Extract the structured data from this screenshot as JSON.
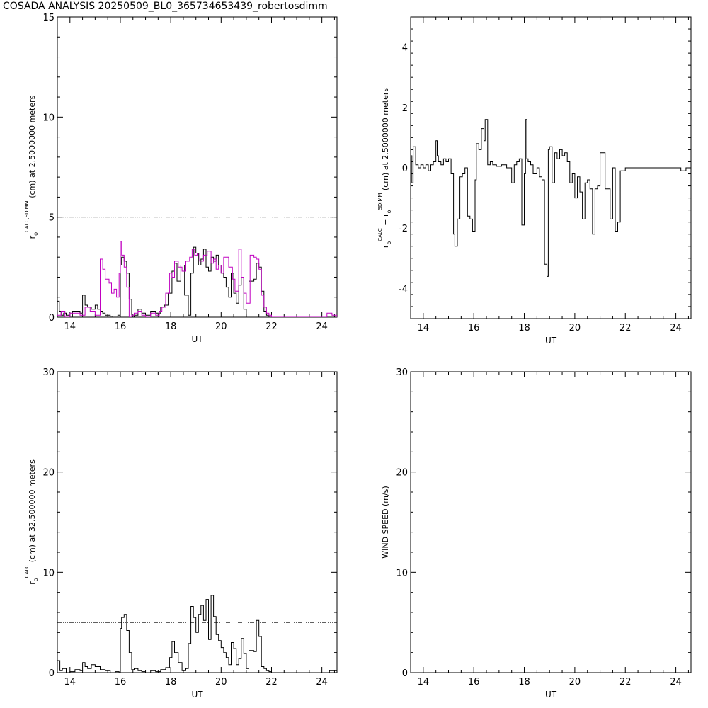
{
  "page": {
    "title": "COSADA ANALYSIS 20250509_BL0_365734653439_robertosdimm"
  },
  "colors": {
    "axes": "#000000",
    "series_calc": "#000000",
    "series_sdimm": "#c000c0"
  },
  "chart_data": [
    {
      "type": "line",
      "title": "",
      "xlabel": "UT",
      "ylabel": "r_o^CALC,SDIMM (cm) at 2.5000000 meters",
      "ylabel_parts": {
        "pre": "r",
        "sub": "o",
        "sup": "CALC,SDIMM",
        "post": " (cm)  at  2.5000000 meters"
      },
      "xlim": [
        13.5,
        24.6
      ],
      "ylim": [
        0,
        15
      ],
      "xticks": [
        14,
        16,
        18,
        20,
        22,
        24
      ],
      "yticks": [
        0,
        5,
        10,
        15
      ],
      "reference_line": {
        "y": 5
      },
      "series": [
        {
          "color": "#000000",
          "x": [
            13.5,
            13.58,
            13.65,
            13.75,
            13.85,
            14.0,
            14.1,
            14.4,
            14.5,
            14.6,
            14.7,
            14.85,
            15.0,
            15.1,
            15.2,
            15.3,
            15.4,
            15.5,
            15.6,
            15.7,
            15.8,
            15.9,
            16.0,
            16.05,
            16.15,
            16.25,
            16.35,
            16.45,
            16.55,
            16.7,
            16.85,
            17.0,
            17.2,
            17.4,
            17.6,
            17.75,
            17.9,
            18.05,
            18.15,
            18.25,
            18.4,
            18.55,
            18.7,
            18.8,
            18.9,
            19.0,
            19.1,
            19.2,
            19.3,
            19.4,
            19.5,
            19.6,
            19.7,
            19.8,
            19.9,
            20.0,
            20.1,
            20.2,
            20.3,
            20.4,
            20.5,
            20.6,
            20.7,
            20.8,
            20.9,
            21.0,
            21.1,
            21.2,
            21.3,
            21.4,
            21.5,
            21.6,
            21.7,
            21.8,
            21.9,
            22.0,
            22.5,
            23.0,
            23.5,
            24.0,
            24.3,
            24.6
          ],
          "y": [
            0.8,
            0.3,
            0.1,
            0.2,
            0.1,
            0.0,
            0.3,
            0.2,
            1.1,
            0.6,
            0.5,
            0.4,
            0.6,
            0.4,
            0.3,
            0.2,
            0.1,
            0.1,
            0.05,
            0.0,
            0.0,
            0.1,
            2.6,
            3.0,
            2.8,
            2.2,
            0.9,
            0.0,
            0.1,
            0.4,
            0.2,
            0.1,
            0.3,
            0.2,
            0.5,
            0.6,
            1.2,
            2.3,
            2.7,
            1.8,
            2.6,
            1.1,
            0.1,
            2.2,
            3.5,
            3.2,
            2.6,
            2.9,
            3.4,
            2.5,
            2.3,
            3.0,
            2.8,
            3.1,
            2.6,
            2.2,
            2.0,
            1.5,
            1.0,
            2.2,
            1.2,
            0.7,
            1.6,
            2.0,
            0.4,
            0.0,
            1.8,
            1.8,
            1.9,
            2.7,
            2.5,
            1.3,
            0.3,
            0.1,
            0.0,
            0.0,
            0.0,
            0.0,
            0.0,
            0.0,
            0.0,
            0.0
          ]
        },
        {
          "color": "#c000c0",
          "x": [
            13.5,
            13.65,
            13.8,
            14.0,
            14.4,
            14.6,
            14.8,
            15.0,
            15.2,
            15.3,
            15.4,
            15.55,
            15.65,
            15.75,
            15.85,
            15.95,
            16.0,
            16.05,
            16.15,
            16.25,
            16.35,
            16.45,
            16.55,
            16.7,
            16.85,
            17.0,
            17.2,
            17.4,
            17.55,
            17.65,
            17.8,
            17.95,
            18.05,
            18.15,
            18.3,
            18.45,
            18.6,
            18.75,
            18.85,
            18.95,
            19.05,
            19.15,
            19.3,
            19.45,
            19.6,
            19.7,
            19.8,
            19.9,
            20.0,
            20.1,
            20.3,
            20.45,
            20.55,
            20.7,
            20.8,
            20.9,
            21.0,
            21.15,
            21.3,
            21.4,
            21.5,
            21.6,
            21.7,
            21.8,
            21.9,
            22.0,
            22.5,
            23.0,
            23.5,
            24.0,
            24.2,
            24.4,
            24.6
          ],
          "y": [
            0.1,
            0.3,
            0.0,
            0.2,
            0.1,
            0.5,
            0.3,
            0.1,
            2.9,
            2.4,
            1.9,
            1.7,
            1.2,
            1.4,
            1.0,
            2.2,
            3.8,
            3.1,
            2.5,
            1.5,
            0.0,
            0.1,
            0.2,
            0.3,
            0.1,
            0.0,
            0.2,
            0.1,
            0.3,
            0.5,
            1.2,
            2.2,
            2.0,
            2.8,
            2.5,
            2.3,
            2.8,
            3.0,
            3.4,
            3.1,
            3.2,
            2.8,
            3.1,
            3.3,
            2.7,
            2.9,
            2.4,
            2.6,
            2.2,
            3.0,
            2.5,
            1.9,
            1.3,
            3.4,
            2.0,
            1.2,
            0.7,
            3.1,
            3.0,
            2.9,
            2.4,
            1.1,
            0.5,
            0.2,
            0.1,
            0.0,
            0.0,
            0.0,
            0.0,
            0.0,
            0.2,
            0.1,
            0.0
          ]
        }
      ]
    },
    {
      "type": "line",
      "title": "",
      "xlabel": "UT",
      "ylabel": "r_o^CALC − r_o^SDIMM (cm) at 2.5000000 meters",
      "ylabel_parts": {
        "pre": "r",
        "sub": "o",
        "sup": "CALC",
        "mid": "  − r",
        "sub2": "o",
        "sup2": "SDIMM",
        "post": " (cm) at 2.5000000 meters"
      },
      "xlim": [
        13.5,
        24.6
      ],
      "ylim": [
        -5,
        5
      ],
      "xticks": [
        14,
        16,
        18,
        20,
        22,
        24
      ],
      "yticks": [
        -4,
        -2,
        0,
        2,
        4
      ],
      "series": [
        {
          "color": "#000000",
          "x": [
            13.5,
            13.55,
            13.6,
            13.7,
            13.8,
            13.9,
            14.0,
            14.1,
            14.2,
            14.3,
            14.4,
            14.5,
            14.55,
            14.6,
            14.7,
            14.8,
            14.9,
            15.0,
            15.1,
            15.2,
            15.25,
            15.35,
            15.45,
            15.55,
            15.65,
            15.75,
            15.85,
            15.95,
            16.05,
            16.1,
            16.2,
            16.3,
            16.4,
            16.45,
            16.55,
            16.65,
            16.75,
            16.9,
            17.1,
            17.3,
            17.5,
            17.6,
            17.7,
            17.8,
            17.9,
            18.0,
            18.05,
            18.1,
            18.15,
            18.25,
            18.35,
            18.5,
            18.6,
            18.7,
            18.8,
            18.9,
            18.95,
            19.0,
            19.1,
            19.2,
            19.3,
            19.4,
            19.5,
            19.6,
            19.7,
            19.8,
            19.9,
            20.0,
            20.1,
            20.2,
            20.3,
            20.4,
            20.5,
            20.6,
            20.7,
            20.8,
            20.9,
            21.0,
            21.2,
            21.4,
            21.5,
            21.6,
            21.7,
            21.8,
            22.0,
            22.5,
            23.0,
            23.5,
            24.0,
            24.2,
            24.4,
            24.6
          ],
          "y": [
            0.4,
            -0.5,
            0.7,
            0.1,
            0.0,
            0.1,
            0.0,
            0.1,
            -0.1,
            0.1,
            0.2,
            0.9,
            0.4,
            0.2,
            0.1,
            0.3,
            0.2,
            0.3,
            -0.2,
            -2.2,
            -2.6,
            -1.7,
            -0.3,
            -0.2,
            0.0,
            -1.6,
            -1.7,
            -2.1,
            -0.4,
            0.8,
            0.6,
            1.3,
            0.9,
            1.6,
            0.1,
            0.2,
            0.1,
            0.05,
            0.1,
            0.0,
            -0.5,
            0.1,
            0.2,
            0.3,
            -1.9,
            -0.2,
            1.6,
            0.3,
            0.2,
            0.1,
            -0.2,
            0.0,
            -0.3,
            -0.4,
            -3.2,
            -3.6,
            0.6,
            0.7,
            -0.5,
            0.5,
            0.3,
            0.6,
            0.4,
            0.5,
            0.2,
            -0.5,
            -0.2,
            -1.0,
            -0.3,
            -0.8,
            -1.7,
            -0.5,
            -0.4,
            -0.7,
            -2.2,
            -0.7,
            -0.6,
            0.5,
            -0.7,
            -1.7,
            0.0,
            -2.1,
            -1.8,
            -0.1,
            0.0,
            0.0,
            0.0,
            0.0,
            0.0,
            -0.1,
            0.0,
            0.1
          ]
        }
      ]
    },
    {
      "type": "line",
      "title": "",
      "xlabel": "UT",
      "ylabel": "r_o^CALC (cm) at 32.500000 meters",
      "ylabel_parts": {
        "pre": "r",
        "sub": "o",
        "sup": "CALC",
        "post": " (cm)  at  32.500000 meters"
      },
      "xlim": [
        13.5,
        24.6
      ],
      "ylim": [
        0,
        30
      ],
      "xticks": [
        14,
        16,
        18,
        20,
        22,
        24
      ],
      "yticks": [
        0,
        10,
        20,
        30
      ],
      "reference_line": {
        "y": 5
      },
      "series": [
        {
          "color": "#000000",
          "x": [
            13.5,
            13.6,
            13.7,
            13.85,
            14.0,
            14.2,
            14.4,
            14.5,
            14.6,
            14.7,
            14.85,
            15.0,
            15.2,
            15.4,
            15.6,
            15.8,
            15.95,
            16.0,
            16.05,
            16.15,
            16.25,
            16.35,
            16.45,
            16.55,
            16.7,
            16.85,
            17.0,
            17.2,
            17.4,
            17.6,
            17.8,
            17.95,
            18.05,
            18.15,
            18.3,
            18.45,
            18.6,
            18.7,
            18.8,
            18.9,
            19.0,
            19.1,
            19.2,
            19.3,
            19.4,
            19.5,
            19.6,
            19.7,
            19.8,
            19.9,
            20.0,
            20.1,
            20.2,
            20.3,
            20.4,
            20.5,
            20.6,
            20.7,
            20.8,
            20.9,
            21.0,
            21.1,
            21.2,
            21.3,
            21.4,
            21.5,
            21.6,
            21.7,
            21.8,
            21.9,
            22.0,
            22.5,
            23.0,
            23.5,
            24.0,
            24.3,
            24.6
          ],
          "y": [
            1.2,
            0.2,
            0.4,
            0.0,
            0.1,
            0.3,
            0.2,
            1.0,
            0.6,
            0.4,
            0.8,
            0.6,
            0.3,
            0.2,
            0.0,
            0.1,
            0.0,
            4.4,
            5.5,
            5.8,
            4.2,
            2.0,
            0.3,
            0.4,
            0.2,
            0.1,
            0.0,
            0.2,
            0.1,
            0.3,
            0.5,
            1.5,
            3.1,
            2.0,
            1.0,
            0.2,
            0.4,
            2.9,
            6.6,
            5.5,
            4.0,
            5.8,
            6.7,
            5.2,
            7.3,
            3.3,
            7.7,
            5.6,
            3.8,
            3.2,
            2.5,
            2.0,
            1.5,
            0.8,
            3.0,
            2.4,
            0.8,
            1.4,
            3.4,
            1.9,
            0.4,
            2.2,
            2.2,
            2.1,
            5.2,
            3.6,
            0.6,
            0.4,
            0.2,
            0.1,
            0.0,
            0.0,
            0.0,
            0.0,
            0.0,
            0.2,
            0.1
          ]
        }
      ]
    },
    {
      "type": "line",
      "title": "",
      "xlabel": "UT",
      "ylabel": "WIND SPEED (m/s)",
      "ylabel_parts": {
        "pre": "WIND SPEED (m/s)"
      },
      "xlim": [
        13.5,
        24.6
      ],
      "ylim": [
        0,
        30
      ],
      "xticks": [
        14,
        16,
        18,
        20,
        22,
        24
      ],
      "yticks": [
        0,
        10,
        20,
        30
      ],
      "series": []
    }
  ]
}
